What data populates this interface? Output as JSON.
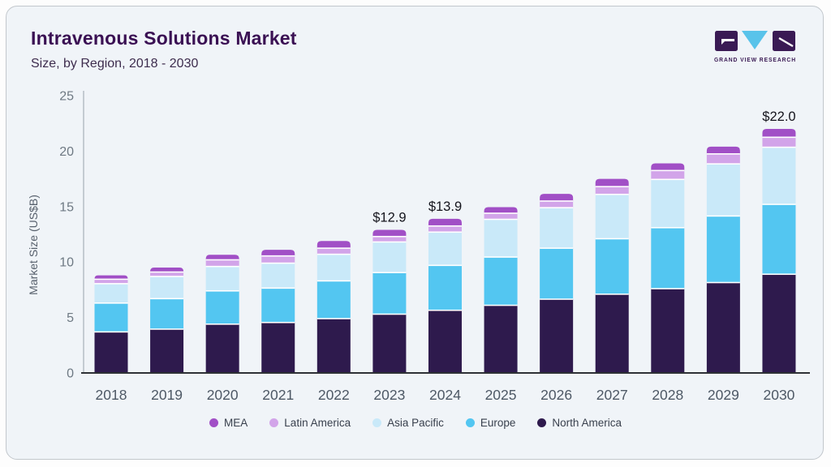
{
  "header": {
    "title": "Intravenous Solutions Market",
    "subtitle": "Size, by Region, 2018 - 2030"
  },
  "logo": {
    "text": "GRAND VIEW RESEARCH",
    "dark_color": "#3a1a54",
    "accent_color": "#59c3ea"
  },
  "chart_data": {
    "type": "bar",
    "stacked": true,
    "title": "Intravenous Solutions Market Size, by Region, 2018 - 2030",
    "categories": [
      "2018",
      "2019",
      "2020",
      "2021",
      "2022",
      "2023",
      "2024",
      "2025",
      "2026",
      "2027",
      "2028",
      "2029",
      "2030"
    ],
    "series": [
      {
        "name": "MEA",
        "color": "#a14fc6",
        "values": [
          0.35,
          0.4,
          0.45,
          0.55,
          0.65,
          0.6,
          0.65,
          0.55,
          0.65,
          0.7,
          0.65,
          0.65,
          0.75
        ]
      },
      {
        "name": "Latin America",
        "color": "#d2a4e9",
        "values": [
          0.4,
          0.4,
          0.6,
          0.65,
          0.55,
          0.49,
          0.55,
          0.55,
          0.6,
          0.7,
          0.8,
          0.9,
          0.9
        ]
      },
      {
        "name": "Asia Pacific",
        "color": "#c9e9f9",
        "values": [
          1.75,
          2.0,
          2.2,
          2.25,
          2.4,
          2.76,
          3.0,
          3.4,
          3.65,
          4.0,
          4.35,
          4.7,
          5.15
        ]
      },
      {
        "name": "Europe",
        "color": "#53c6f1",
        "values": [
          2.6,
          2.75,
          3.0,
          3.1,
          3.4,
          3.75,
          4.05,
          4.35,
          4.6,
          5.0,
          5.5,
          6.0,
          6.3
        ]
      },
      {
        "name": "North America",
        "color": "#2e1a4d",
        "values": [
          3.7,
          3.95,
          4.4,
          4.55,
          4.9,
          5.3,
          5.65,
          6.1,
          6.65,
          7.1,
          7.6,
          8.15,
          8.9
        ]
      }
    ],
    "stack_order_bottom_to_top": [
      "North America",
      "Europe",
      "Asia Pacific",
      "Latin America",
      "MEA"
    ],
    "totals": [
      8.8,
      9.5,
      10.65,
      11.1,
      11.9,
      12.9,
      13.9,
      14.95,
      16.15,
      17.5,
      18.9,
      20.4,
      22.0
    ],
    "annotations": [
      {
        "category": "2023",
        "text": "$12.9"
      },
      {
        "category": "2024",
        "text": "$13.9"
      },
      {
        "category": "2030",
        "text": "$22.0"
      }
    ],
    "xlabel": "",
    "ylabel": "Market Size (US$B)",
    "ylim": [
      0,
      25
    ],
    "yticks": [
      "0",
      "5",
      "10",
      "15",
      "20",
      "25"
    ],
    "grid": false,
    "legend_position": "bottom"
  },
  "style_colors": {
    "card_bg": "#f0f4f8",
    "title": "#3a1053",
    "subtitle": "#3e2d4e",
    "y_tick": "#6e7983",
    "x_tick": "#4d5865",
    "axis_y_line": "#c4cbd2",
    "axis_x_line": "#2e3136",
    "annotation": "#14141c",
    "separator": "#ffffff"
  }
}
